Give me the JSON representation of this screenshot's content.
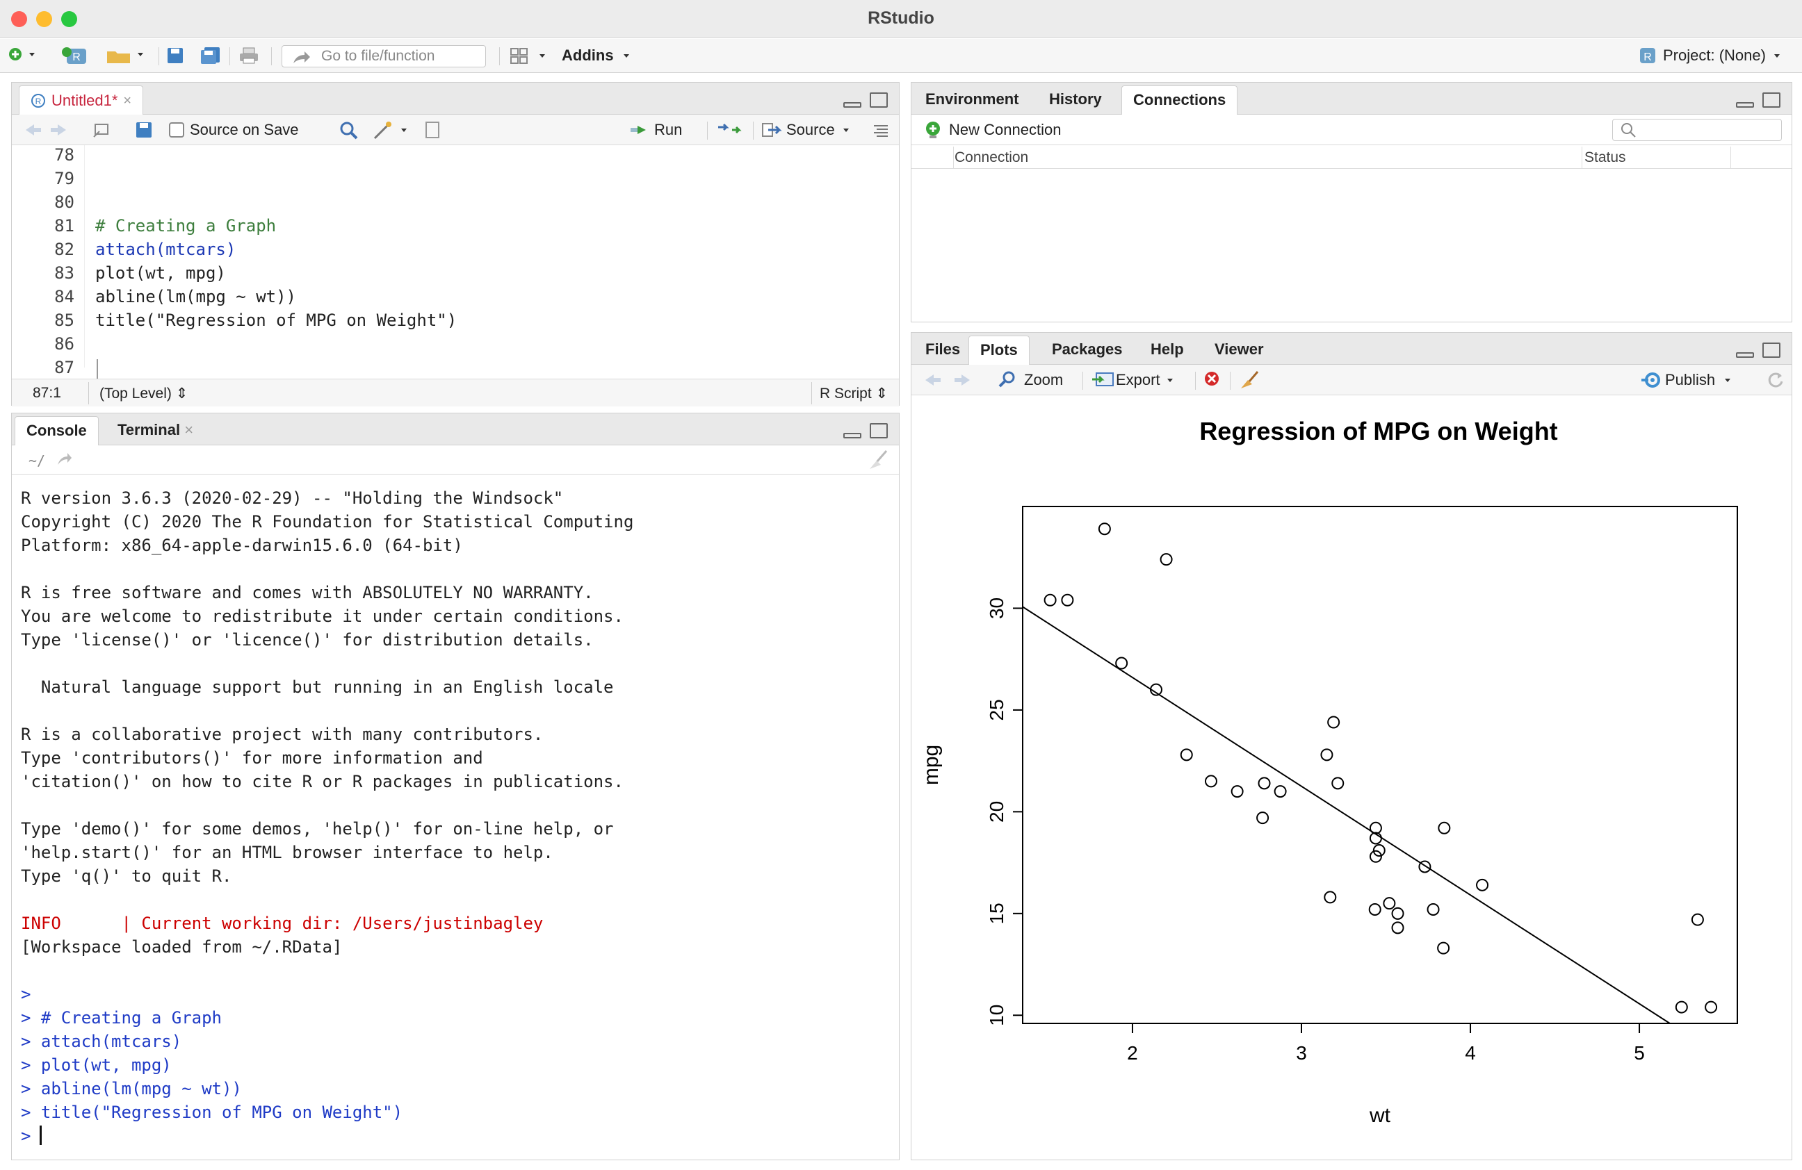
{
  "window": {
    "title": "RStudio"
  },
  "toolbar": {
    "goto_placeholder": "Go to file/function",
    "addins": "Addins",
    "project": "Project: (None)"
  },
  "editor": {
    "tab": "Untitled1*",
    "source_on_save": "Source on Save",
    "run": "Run",
    "source": "Source",
    "lines": [
      {
        "n": "78",
        "t": ""
      },
      {
        "n": "79",
        "t": ""
      },
      {
        "n": "80",
        "t": ""
      },
      {
        "n": "81",
        "t": "# Creating a Graph"
      },
      {
        "n": "82",
        "t": "attach(mtcars)"
      },
      {
        "n": "83",
        "t": "plot(wt, mpg)"
      },
      {
        "n": "84",
        "t": "abline(lm(mpg ~ wt))"
      },
      {
        "n": "85",
        "t": "title(\"Regression of MPG on Weight\")"
      },
      {
        "n": "86",
        "t": ""
      },
      {
        "n": "87",
        "t": ""
      }
    ],
    "status_pos": "87:1",
    "status_scope": "(Top Level)",
    "status_type": "R Script"
  },
  "console": {
    "tab_console": "Console",
    "tab_terminal": "Terminal",
    "path": "~/",
    "lines": [
      {
        "t": "R version 3.6.3 (2020-02-29) -- \"Holding the Windsock\"",
        "c": ""
      },
      {
        "t": "Copyright (C) 2020 The R Foundation for Statistical Computing",
        "c": ""
      },
      {
        "t": "Platform: x86_64-apple-darwin15.6.0 (64-bit)",
        "c": ""
      },
      {
        "t": "",
        "c": ""
      },
      {
        "t": "R is free software and comes with ABSOLUTELY NO WARRANTY.",
        "c": ""
      },
      {
        "t": "You are welcome to redistribute it under certain conditions.",
        "c": ""
      },
      {
        "t": "Type 'license()' or 'licence()' for distribution details.",
        "c": ""
      },
      {
        "t": "",
        "c": ""
      },
      {
        "t": "  Natural language support but running in an English locale",
        "c": ""
      },
      {
        "t": "",
        "c": ""
      },
      {
        "t": "R is a collaborative project with many contributors.",
        "c": ""
      },
      {
        "t": "Type 'contributors()' for more information and",
        "c": ""
      },
      {
        "t": "'citation()' on how to cite R or R packages in publications.",
        "c": ""
      },
      {
        "t": "",
        "c": ""
      },
      {
        "t": "Type 'demo()' for some demos, 'help()' for on-line help, or",
        "c": ""
      },
      {
        "t": "'help.start()' for an HTML browser interface to help.",
        "c": ""
      },
      {
        "t": "Type 'q()' to quit R.",
        "c": ""
      },
      {
        "t": "",
        "c": ""
      },
      {
        "t": "INFO      | Current working dir: /Users/justinbagley",
        "c": "red"
      },
      {
        "t": "[Workspace loaded from ~/.RData]",
        "c": ""
      },
      {
        "t": "",
        "c": ""
      },
      {
        "t": ">",
        "c": "blue"
      },
      {
        "t": "> # Creating a Graph",
        "c": "blue"
      },
      {
        "t": "> attach(mtcars)",
        "c": "blue"
      },
      {
        "t": "> plot(wt, mpg)",
        "c": "blue"
      },
      {
        "t": "> abline(lm(mpg ~ wt))",
        "c": "blue"
      },
      {
        "t": "> title(\"Regression of MPG on Weight\")",
        "c": "blue"
      },
      {
        "t": "> ",
        "c": "blue"
      }
    ]
  },
  "env": {
    "tabs": [
      "Environment",
      "History",
      "Connections"
    ],
    "new_connection": "New Connection",
    "col_connection": "Connection",
    "col_status": "Status"
  },
  "plots": {
    "tabs": [
      "Files",
      "Plots",
      "Packages",
      "Help",
      "Viewer"
    ],
    "zoom": "Zoom",
    "export": "Export",
    "publish": "Publish"
  },
  "chart_data": {
    "type": "scatter",
    "title": "Regression of MPG on Weight",
    "xlabel": "wt",
    "ylabel": "mpg",
    "xlim": [
      1.35,
      5.58
    ],
    "ylim": [
      9.6,
      35.0
    ],
    "xticks": [
      2,
      3,
      4,
      5
    ],
    "yticks": [
      10,
      15,
      20,
      25,
      30
    ],
    "points": [
      [
        2.62,
        21.0
      ],
      [
        2.875,
        21.0
      ],
      [
        2.32,
        22.8
      ],
      [
        3.215,
        21.4
      ],
      [
        3.44,
        18.7
      ],
      [
        3.46,
        18.1
      ],
      [
        3.57,
        14.3
      ],
      [
        3.19,
        24.4
      ],
      [
        3.15,
        22.8
      ],
      [
        3.44,
        19.2
      ],
      [
        3.44,
        17.8
      ],
      [
        4.07,
        16.4
      ],
      [
        3.73,
        17.3
      ],
      [
        3.78,
        15.2
      ],
      [
        5.25,
        10.4
      ],
      [
        5.424,
        10.4
      ],
      [
        5.345,
        14.7
      ],
      [
        2.2,
        32.4
      ],
      [
        1.615,
        30.4
      ],
      [
        1.835,
        33.9
      ],
      [
        2.465,
        21.5
      ],
      [
        3.52,
        15.5
      ],
      [
        3.435,
        15.2
      ],
      [
        3.84,
        13.3
      ],
      [
        3.845,
        19.2
      ],
      [
        1.935,
        27.3
      ],
      [
        2.14,
        26.0
      ],
      [
        1.513,
        30.4
      ],
      [
        3.17,
        15.8
      ],
      [
        2.77,
        19.7
      ],
      [
        3.57,
        15.0
      ],
      [
        2.78,
        21.4
      ]
    ],
    "regression": {
      "intercept": 37.285,
      "slope": -5.344
    },
    "grid": false
  }
}
